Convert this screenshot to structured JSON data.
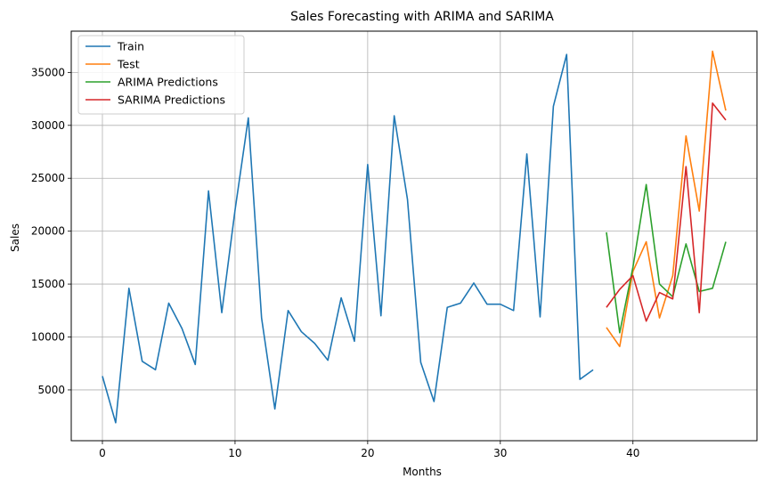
{
  "chart_data": {
    "type": "line",
    "title": "Sales Forecasting with ARIMA and SARIMA",
    "xlabel": "Months",
    "ylabel": "Sales",
    "xlim": [
      -2.35,
      49.35
    ],
    "ylim": [
      200,
      38900
    ],
    "xticks": [
      0,
      10,
      20,
      30,
      40
    ],
    "yticks": [
      5000,
      10000,
      15000,
      20000,
      25000,
      30000,
      35000
    ],
    "grid": true,
    "legend_position": "top-left",
    "series": [
      {
        "name": "Train",
        "color": "#1f77b4",
        "x": [
          0,
          1,
          2,
          3,
          4,
          5,
          6,
          7,
          8,
          9,
          10,
          11,
          12,
          13,
          14,
          15,
          16,
          17,
          18,
          19,
          20,
          21,
          22,
          23,
          24,
          25,
          26,
          27,
          28,
          29,
          30,
          31,
          32,
          33,
          34,
          35,
          36,
          37
        ],
        "values": [
          6300,
          1900,
          14600,
          7700,
          6900,
          13200,
          10800,
          7400,
          23800,
          12300,
          22000,
          30700,
          11800,
          3200,
          12500,
          10500,
          9400,
          7800,
          13700,
          9600,
          26300,
          12000,
          30900,
          23000,
          7600,
          3900,
          12800,
          13200,
          15100,
          13100,
          13100,
          12500,
          27300,
          11900,
          31800,
          36700,
          6000,
          6900
        ]
      },
      {
        "name": "Test",
        "color": "#ff7f0e",
        "x": [
          38,
          39,
          40,
          41,
          42,
          43,
          44,
          45,
          46,
          47
        ],
        "values": [
          10900,
          9100,
          16200,
          19000,
          11800,
          15800,
          29000,
          21900,
          37000,
          31400
        ]
      },
      {
        "name": "ARIMA Predictions",
        "color": "#2ca02c",
        "x": [
          38,
          39,
          40,
          41,
          42,
          43,
          44,
          45,
          46,
          47
        ],
        "values": [
          19900,
          10400,
          16600,
          24400,
          15000,
          13800,
          18800,
          14300,
          14600,
          19000
        ]
      },
      {
        "name": "SARIMA Predictions",
        "color": "#d62728",
        "x": [
          38,
          39,
          40,
          41,
          42,
          43,
          44,
          45,
          46,
          47
        ],
        "values": [
          12800,
          14500,
          15800,
          11500,
          14200,
          13600,
          26100,
          12300,
          32100,
          30500
        ]
      }
    ]
  }
}
